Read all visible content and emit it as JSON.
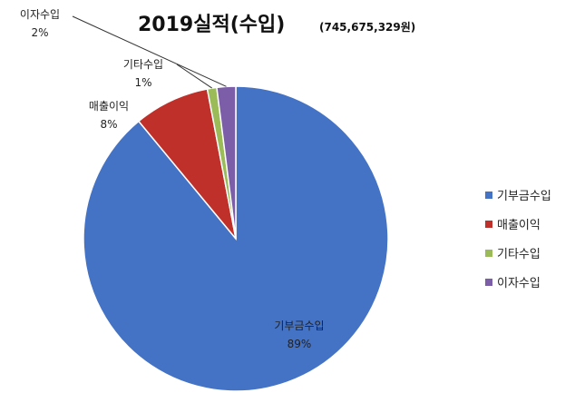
{
  "chart_data": {
    "type": "pie",
    "title": "2019실적(수입)",
    "subtitle": "(745,675,329원)",
    "slices": [
      {
        "name": "기부금수입",
        "value": 89,
        "label": "89%",
        "color": "#4472C4"
      },
      {
        "name": "매출이익",
        "value": 8,
        "label": "8%",
        "color": "#C0302A"
      },
      {
        "name": "기타수입",
        "value": 1,
        "label": "1%",
        "color": "#9BBB59"
      },
      {
        "name": "이자수입",
        "value": 2,
        "label": "2%",
        "color": "#7B5EA7"
      }
    ],
    "legend": {
      "placement": "right",
      "items": [
        "기부금수입",
        "매출이익",
        "기타수입",
        "이자수입"
      ]
    }
  }
}
